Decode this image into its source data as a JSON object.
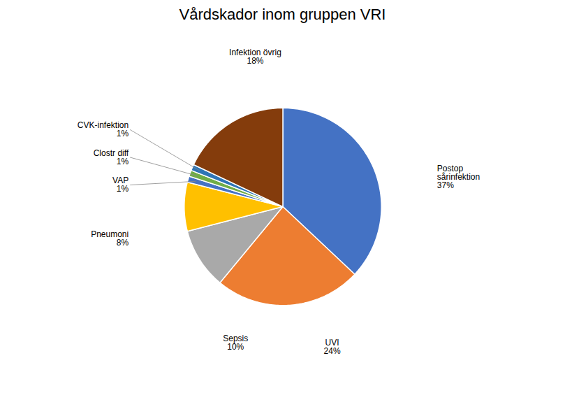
{
  "chart_data": {
    "type": "pie",
    "title": "Vårdskador inom gruppen VRI",
    "categories": [
      "Postop\nsårinfektion",
      "UVI",
      "Sepsis",
      "Pneumoni",
      "VAP",
      "Clostr diff",
      "CVK-infektion",
      "Infektion övrig"
    ],
    "values": [
      37,
      24,
      10,
      8,
      1,
      1,
      1,
      18
    ],
    "value_labels": [
      "37%",
      "24%",
      "10%",
      "8%",
      "1%",
      "1%",
      "1%",
      "18%"
    ],
    "colors": [
      "#4472C4",
      "#ED7D31",
      "#A9A9A9",
      "#FFC000",
      "#4472C4",
      "#70AD47",
      "#2E75B6",
      "#843C0C"
    ],
    "data_labels": true
  }
}
